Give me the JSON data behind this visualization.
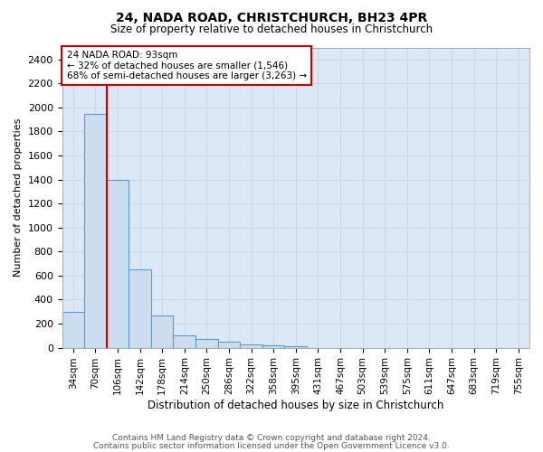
{
  "title1": "24, NADA ROAD, CHRISTCHURCH, BH23 4PR",
  "title2": "Size of property relative to detached houses in Christchurch",
  "xlabel": "Distribution of detached houses by size in Christchurch",
  "ylabel": "Number of detached properties",
  "categories": [
    "34sqm",
    "70sqm",
    "106sqm",
    "142sqm",
    "178sqm",
    "214sqm",
    "250sqm",
    "286sqm",
    "322sqm",
    "358sqm",
    "395sqm",
    "431sqm",
    "467sqm",
    "503sqm",
    "539sqm",
    "575sqm",
    "611sqm",
    "647sqm",
    "683sqm",
    "719sqm",
    "755sqm"
  ],
  "values": [
    300,
    1950,
    1400,
    650,
    270,
    100,
    70,
    50,
    30,
    20,
    10,
    0,
    0,
    0,
    0,
    0,
    0,
    0,
    0,
    0,
    0
  ],
  "bar_color": "#ccddf0",
  "bar_edge_color": "#5b9bd5",
  "annotation_text_line1": "24 NADA ROAD: 93sqm",
  "annotation_text_line2": "← 32% of detached houses are smaller (1,546)",
  "annotation_text_line3": "68% of semi-detached houses are larger (3,263) →",
  "annotation_box_color": "#ffffff",
  "annotation_box_edge": "#cc0000",
  "vline_color": "#cc0000",
  "vline_x": 1.5,
  "ylim": [
    0,
    2500
  ],
  "yticks": [
    0,
    200,
    400,
    600,
    800,
    1000,
    1200,
    1400,
    1600,
    1800,
    2000,
    2200,
    2400
  ],
  "grid_color": "#c8d8e8",
  "background_color": "#dce8f5",
  "footer1": "Contains HM Land Registry data © Crown copyright and database right 2024.",
  "footer2": "Contains public sector information licensed under the Open Government Licence v3.0."
}
